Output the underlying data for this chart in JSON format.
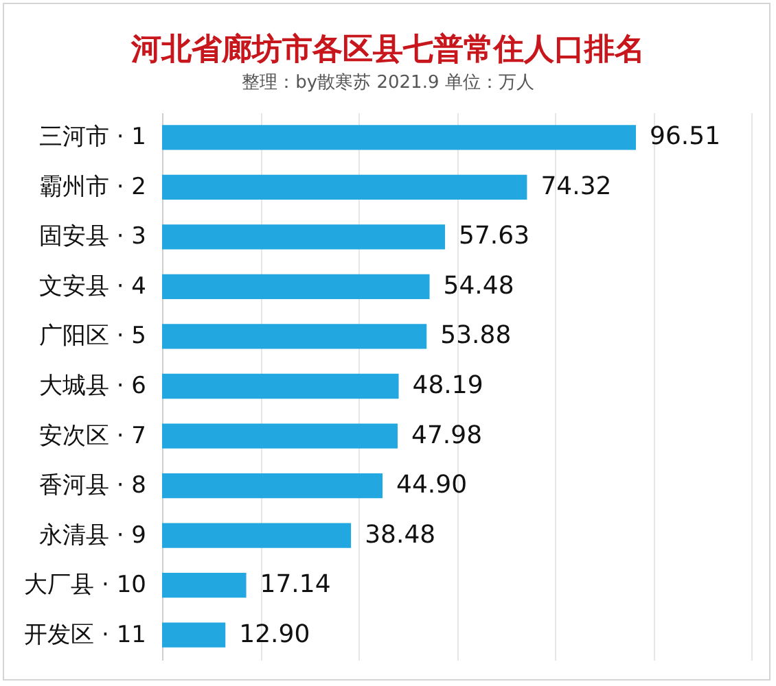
{
  "chart_data": {
    "type": "bar",
    "orientation": "horizontal",
    "title": "河北省廊坊市各区县七普常住人口排名",
    "subtitle": "整理：by散寒苏 2021.9 单位：万人",
    "categories": [
      "三河市 · 1",
      "霸州市 · 2",
      "固安县 · 3",
      "文安县 · 4",
      "广阳区 · 5",
      "大城县 · 6",
      "安次区 · 7",
      "香河县 · 8",
      "永清县 · 9",
      "大厂县 · 10",
      "开发区 · 11"
    ],
    "values": [
      96.51,
      74.32,
      57.63,
      54.48,
      53.88,
      48.19,
      47.98,
      44.9,
      38.48,
      17.14,
      12.9
    ],
    "value_labels": [
      "96.51",
      "74.32",
      "57.63",
      "54.48",
      "53.88",
      "48.19",
      "47.98",
      "44.90",
      "38.48",
      "17.14",
      "12.90"
    ],
    "color": "#22a7e0",
    "xlim": [
      0,
      120
    ],
    "xticks": [
      0,
      20,
      40,
      60,
      80,
      100,
      120
    ],
    "tick_labels": "y",
    "grid": "x"
  }
}
